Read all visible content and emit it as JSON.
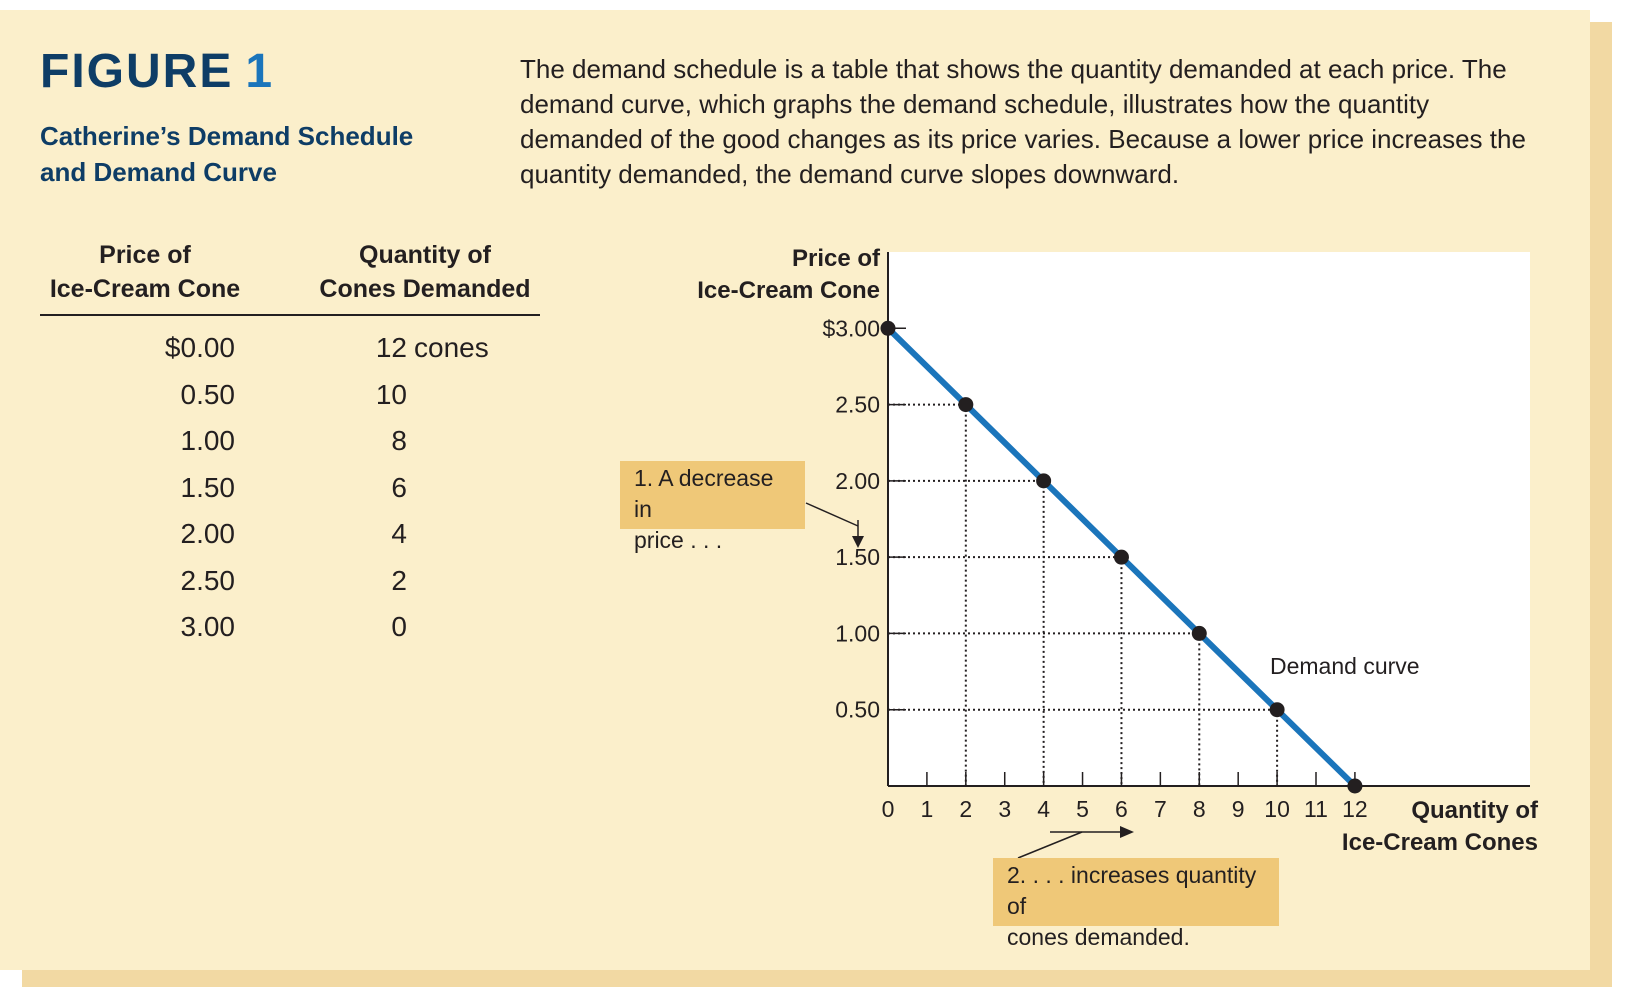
{
  "figure": {
    "label": "FIGURE",
    "number": "1",
    "title_line1": "Catherine’s Demand Schedule",
    "title_line2": "and Demand Curve",
    "caption": "The demand schedule is a table that shows the quantity demanded at each price. The demand curve, which graphs the demand schedule, illustrates how the quantity demanded of the good changes as its price varies. Because a lower price increases the quantity demanded, the demand curve slopes downward."
  },
  "table": {
    "price_header_line1": "Price of",
    "price_header_line2": "Ice-Cream Cone",
    "qty_header_line1": "Quantity of",
    "qty_header_line2": "Cones Demanded",
    "rows": [
      {
        "price": "$0.00",
        "qty": "12",
        "unit": "cones"
      },
      {
        "price": "0.50",
        "qty": "10",
        "unit": ""
      },
      {
        "price": "1.00",
        "qty": "8",
        "unit": ""
      },
      {
        "price": "1.50",
        "qty": "6",
        "unit": ""
      },
      {
        "price": "2.00",
        "qty": "4",
        "unit": ""
      },
      {
        "price": "2.50",
        "qty": "2",
        "unit": ""
      },
      {
        "price": "3.00",
        "qty": "0",
        "unit": ""
      }
    ]
  },
  "annotations": {
    "a1_line1": "1. A decrease in",
    "a1_line2": "price . . .",
    "a2_line1": "2. . . . increases quantity of",
    "a2_line2": "cones demanded."
  },
  "colors": {
    "curve": "#1b75bb",
    "accent": "#0e3d66",
    "panel": "#fbefcb",
    "annotation": "#efc878"
  },
  "chart_data": {
    "type": "line",
    "ylabel_line1": "Price of",
    "ylabel_line2": "Ice-Cream Cone",
    "xlabel_line1": "Quantity of",
    "xlabel_line2": "Ice-Cream Cones",
    "curve_label": "Demand curve",
    "x": [
      0,
      2,
      4,
      6,
      8,
      10,
      12
    ],
    "y": [
      3.0,
      2.5,
      2.0,
      1.5,
      1.0,
      0.5,
      0.0
    ],
    "xlim": [
      0,
      16.5
    ],
    "ylim": [
      0,
      3.5
    ],
    "x_ticks": [
      "0",
      "1",
      "2",
      "3",
      "4",
      "5",
      "6",
      "7",
      "8",
      "9",
      "10",
      "11",
      "12"
    ],
    "y_ticks": [
      {
        "value": 3.0,
        "label": "$3.00"
      },
      {
        "value": 2.5,
        "label": "2.50"
      },
      {
        "value": 2.0,
        "label": "2.00"
      },
      {
        "value": 1.5,
        "label": "1.50"
      },
      {
        "value": 1.0,
        "label": "1.00"
      },
      {
        "value": 0.5,
        "label": "0.50"
      }
    ],
    "grid": "dotted guide lines to each point"
  }
}
